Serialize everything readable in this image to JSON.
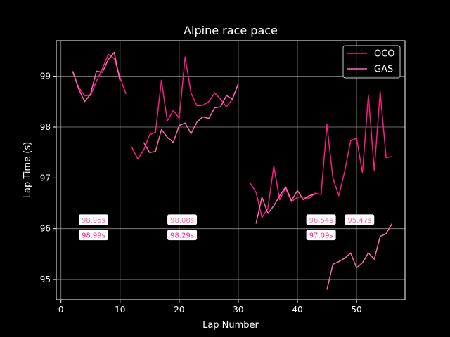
{
  "chart_data": {
    "type": "line",
    "title": "Alpine race pace",
    "xlabel": "Lap Number",
    "ylabel": "Lap Time (s)",
    "xlim": [
      -0.8,
      58.2
    ],
    "ylim": [
      94.6,
      99.7
    ],
    "xticks": [
      0,
      10,
      20,
      30,
      40,
      50
    ],
    "yticks": [
      95,
      96,
      97,
      98,
      99
    ],
    "grid": true,
    "legend_position": "top-right",
    "colors": {
      "background": "#000000",
      "grid": "#b0b0b0",
      "text": "#ffffff"
    },
    "series": [
      {
        "name": "OCO",
        "color": "#ff1a8c",
        "segments": [
          [
            [
              2,
              99.08
            ],
            [
              3,
              98.78
            ],
            [
              4,
              98.62
            ],
            [
              5,
              98.62
            ],
            [
              6,
              98.9
            ],
            [
              7,
              99.15
            ],
            [
              8,
              99.43
            ],
            [
              9,
              99.35
            ],
            [
              10,
              98.98
            ],
            [
              11,
              98.65
            ]
          ],
          [
            [
              12,
              97.6
            ],
            [
              13,
              97.37
            ],
            [
              14,
              97.55
            ],
            [
              15,
              97.85
            ],
            [
              16,
              97.9
            ],
            [
              17,
              98.92
            ],
            [
              18,
              98.12
            ],
            [
              19,
              98.33
            ],
            [
              20,
              98.17
            ],
            [
              21,
              99.38
            ],
            [
              22,
              98.67
            ],
            [
              23,
              98.42
            ],
            [
              24,
              98.43
            ],
            [
              25,
              98.5
            ],
            [
              26,
              98.67
            ],
            [
              27,
              98.55
            ],
            [
              28,
              98.4
            ],
            [
              29,
              98.55
            ],
            [
              30,
              98.85
            ]
          ],
          [
            [
              32,
              96.9
            ],
            [
              33,
              96.72
            ],
            [
              34,
              96.22
            ],
            [
              35,
              96.4
            ],
            [
              36,
              97.23
            ],
            [
              37,
              96.57
            ],
            [
              38,
              96.8
            ],
            [
              39,
              96.53
            ],
            [
              40,
              96.62
            ],
            [
              41,
              96.62
            ],
            [
              42,
              96.6
            ],
            [
              43,
              96.7
            ],
            [
              44,
              96.67
            ],
            [
              45,
              98.05
            ],
            [
              46,
              97.0
            ],
            [
              47,
              96.65
            ],
            [
              48,
              97.13
            ],
            [
              49,
              97.73
            ],
            [
              50,
              97.78
            ],
            [
              51,
              97.1
            ],
            [
              52,
              98.63
            ],
            [
              53,
              97.15
            ],
            [
              54,
              98.7
            ],
            [
              55,
              97.4
            ],
            [
              56,
              97.42
            ]
          ]
        ]
      },
      {
        "name": "GAS",
        "color": "#ff69b4",
        "segments": [
          [
            [
              2,
              99.1
            ],
            [
              3,
              98.75
            ],
            [
              4,
              98.5
            ],
            [
              5,
              98.65
            ],
            [
              6,
              99.1
            ],
            [
              7,
              99.08
            ],
            [
              8,
              99.33
            ],
            [
              9,
              99.47
            ],
            [
              10,
              98.9
            ]
          ],
          [
            [
              14,
              97.7
            ],
            [
              15,
              97.5
            ],
            [
              16,
              97.52
            ],
            [
              17,
              97.95
            ],
            [
              18,
              97.8
            ],
            [
              19,
              97.7
            ],
            [
              20,
              98.03
            ],
            [
              21,
              98.08
            ],
            [
              22,
              97.87
            ],
            [
              23,
              98.1
            ],
            [
              24,
              98.2
            ],
            [
              25,
              98.17
            ],
            [
              26,
              98.38
            ],
            [
              27,
              98.4
            ],
            [
              28,
              98.62
            ],
            [
              29,
              98.55
            ],
            [
              30,
              98.85
            ]
          ],
          [
            [
              33,
              96.1
            ],
            [
              34,
              96.62
            ],
            [
              35,
              96.3
            ],
            [
              36,
              96.45
            ],
            [
              37,
              96.65
            ],
            [
              38,
              96.82
            ],
            [
              39,
              96.55
            ],
            [
              40,
              96.75
            ],
            [
              41,
              96.57
            ],
            [
              42,
              96.65
            ],
            [
              43,
              96.68
            ]
          ],
          [
            [
              45,
              94.8
            ],
            [
              46,
              95.3
            ],
            [
              47,
              95.35
            ],
            [
              48,
              95.42
            ],
            [
              49,
              95.52
            ],
            [
              50,
              95.23
            ],
            [
              51,
              95.33
            ],
            [
              52,
              95.52
            ],
            [
              53,
              95.4
            ],
            [
              54,
              95.85
            ],
            [
              55,
              95.9
            ],
            [
              56,
              96.1
            ]
          ]
        ]
      }
    ],
    "annotations": [
      {
        "x": 5.5,
        "y": 96.17,
        "text": "98.95s",
        "series": "GAS"
      },
      {
        "x": 5.5,
        "y": 95.87,
        "text": "98.99s",
        "series": "OCO"
      },
      {
        "x": 20.5,
        "y": 96.17,
        "text": "98.08s",
        "series": "GAS"
      },
      {
        "x": 20.5,
        "y": 95.87,
        "text": "98.29s",
        "series": "OCO"
      },
      {
        "x": 44.0,
        "y": 96.17,
        "text": "96.54s",
        "series": "GAS"
      },
      {
        "x": 44.0,
        "y": 95.87,
        "text": "97.09s",
        "series": "OCO"
      },
      {
        "x": 50.5,
        "y": 96.17,
        "text": "95.47s",
        "series": "GAS"
      }
    ]
  }
}
